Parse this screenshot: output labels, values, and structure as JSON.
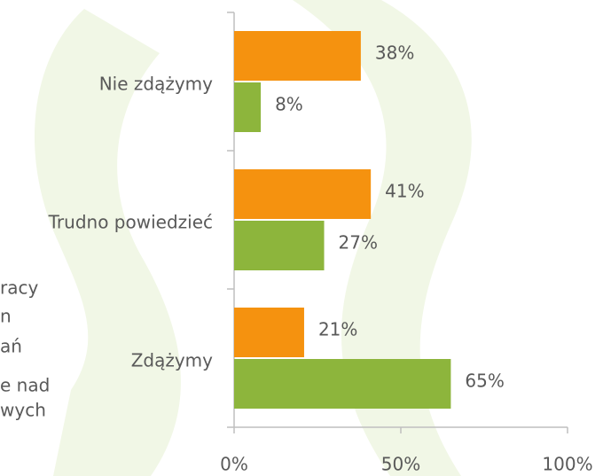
{
  "chart_data": {
    "type": "barh",
    "categories": [
      "Nie zdążymy",
      "Trudno powiedzieć",
      "Zdążymy"
    ],
    "series": [
      {
        "color": "#f5920f",
        "values": [
          38,
          41,
          21
        ],
        "value_labels": [
          "38%",
          "41%",
          "21%"
        ]
      },
      {
        "color": "#8db53c",
        "values": [
          8,
          27,
          65
        ],
        "value_labels": [
          "8%",
          "27%",
          "65%"
        ]
      }
    ],
    "xlim": [
      0,
      100
    ],
    "xticks": [
      {
        "value": 0,
        "label": "0%"
      },
      {
        "value": 50,
        "label": "50%"
      },
      {
        "value": 100,
        "label": "100%"
      }
    ],
    "grid": false,
    "annotations": [
      "racy",
      "n",
      "ań",
      "e nad",
      "wych"
    ]
  }
}
